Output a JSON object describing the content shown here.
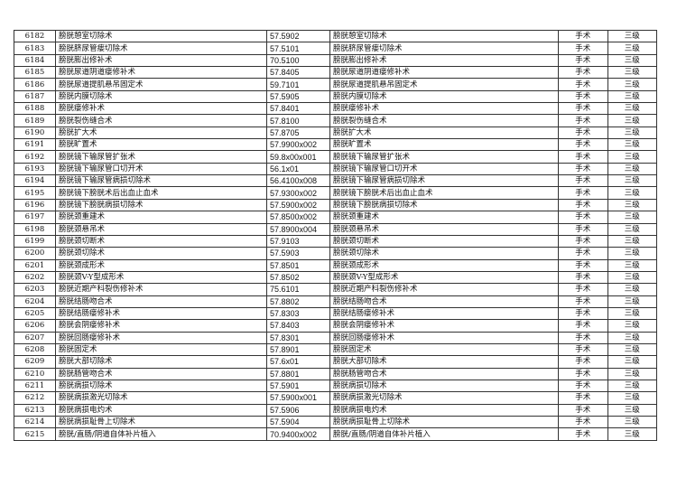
{
  "rows": [
    [
      "6182",
      "膀胱憩室切除术",
      "57.5902",
      "膀胱憩室切除术",
      "手术",
      "三级"
    ],
    [
      "6183",
      "膀胱脐尿管瘘切除术",
      "57.5101",
      "膀胱脐尿管瘘切除术",
      "手术",
      "三级"
    ],
    [
      "6184",
      "膀胱膨出修补术",
      "70.5100",
      "膀胱膨出修补术",
      "手术",
      "三级"
    ],
    [
      "6185",
      "膀胱尿道阴道瘘修补术",
      "57.8405",
      "膀胱尿道阴道瘘修补术",
      "手术",
      "三级"
    ],
    [
      "6186",
      "膀胱尿道提肌悬吊固定术",
      "59.7101",
      "膀胱尿道提肌悬吊固定术",
      "手术",
      "三级"
    ],
    [
      "6187",
      "膀胱内膜切除术",
      "57.5905",
      "膀胱内膜切除术",
      "手术",
      "三级"
    ],
    [
      "6188",
      "膀胱瘘修补术",
      "57.8401",
      "膀胱瘘修补术",
      "手术",
      "三级"
    ],
    [
      "6189",
      "膀胱裂伤缝合术",
      "57.8100",
      "膀胱裂伤缝合术",
      "手术",
      "三级"
    ],
    [
      "6190",
      "膀胱扩大术",
      "57.8705",
      "膀胱扩大术",
      "手术",
      "三级"
    ],
    [
      "6191",
      "膀胱旷置术",
      "57.9900x002",
      "膀胱旷置术",
      "手术",
      "三级"
    ],
    [
      "6192",
      "膀胱镜下输尿管扩张术",
      "59.8x00x001",
      "膀胱镜下输尿管扩张术",
      "手术",
      "三级"
    ],
    [
      "6193",
      "膀胱镜下输尿管口切开术",
      "56.1x01",
      "膀胱镜下输尿管口切开术",
      "手术",
      "三级"
    ],
    [
      "6194",
      "膀胱镜下输尿管病损切除术",
      "56.4100x008",
      "膀胱镜下输尿管病损切除术",
      "手术",
      "三级"
    ],
    [
      "6195",
      "膀胱镜下膀胱术后出血止血术",
      "57.9300x002",
      "膀胱镜下膀胱术后出血止血术",
      "手术",
      "三级"
    ],
    [
      "6196",
      "膀胱镜下膀胱病损切除术",
      "57.5900x002",
      "膀胱镜下膀胱病损切除术",
      "手术",
      "三级"
    ],
    [
      "6197",
      "膀胱颈重建术",
      "57.8500x002",
      "膀胱颈重建术",
      "手术",
      "三级"
    ],
    [
      "6198",
      "膀胱颈悬吊术",
      "57.8900x004",
      "膀胱颈悬吊术",
      "手术",
      "三级"
    ],
    [
      "6199",
      "膀胱颈切断术",
      "57.9103",
      "膀胱颈切断术",
      "手术",
      "三级"
    ],
    [
      "6200",
      "膀胱颈切除术",
      "57.5903",
      "膀胱颈切除术",
      "手术",
      "三级"
    ],
    [
      "6201",
      "膀胱颈成形术",
      "57.8501",
      "膀胱颈成形术",
      "手术",
      "三级"
    ],
    [
      "6202",
      "膀胱颈V-Y型成形术",
      "57.8502",
      "膀胱颈V-Y型成形术",
      "手术",
      "三级"
    ],
    [
      "6203",
      "膀胱近期产科裂伤修补术",
      "75.6101",
      "膀胱近期产科裂伤修补术",
      "手术",
      "三级"
    ],
    [
      "6204",
      "膀胱结肠吻合术",
      "57.8802",
      "膀胱结肠吻合术",
      "手术",
      "三级"
    ],
    [
      "6205",
      "膀胱结肠瘘修补术",
      "57.8303",
      "膀胱结肠瘘修补术",
      "手术",
      "三级"
    ],
    [
      "6206",
      "膀胱会阴瘘修补术",
      "57.8403",
      "膀胱会阴瘘修补术",
      "手术",
      "三级"
    ],
    [
      "6207",
      "膀胱回肠瘘修补术",
      "57.8301",
      "膀胱回肠瘘修补术",
      "手术",
      "三级"
    ],
    [
      "6208",
      "膀胱固定术",
      "57.8901",
      "膀胱固定术",
      "手术",
      "三级"
    ],
    [
      "6209",
      "膀胱大部切除术",
      "57.6x01",
      "膀胱大部切除术",
      "手术",
      "三级"
    ],
    [
      "6210",
      "膀胱肠管吻合术",
      "57.8801",
      "膀胱肠管吻合术",
      "手术",
      "三级"
    ],
    [
      "6211",
      "膀胱病损切除术",
      "57.5901",
      "膀胱病损切除术",
      "手术",
      "三级"
    ],
    [
      "6212",
      "膀胱病损激光切除术",
      "57.5900x001",
      "膀胱病损激光切除术",
      "手术",
      "三级"
    ],
    [
      "6213",
      "膀胱病损电灼术",
      "57.5906",
      "膀胱病损电灼术",
      "手术",
      "三级"
    ],
    [
      "6214",
      "膀胱病损耻骨上切除术",
      "57.5904",
      "膀胱病损耻骨上切除术",
      "手术",
      "三级"
    ],
    [
      "6215",
      "膀胱/直肠/阴道自体补片植入",
      "70.9400x002",
      "膀胱/直肠/阴道自体补片植入",
      "手术",
      "三级"
    ]
  ]
}
